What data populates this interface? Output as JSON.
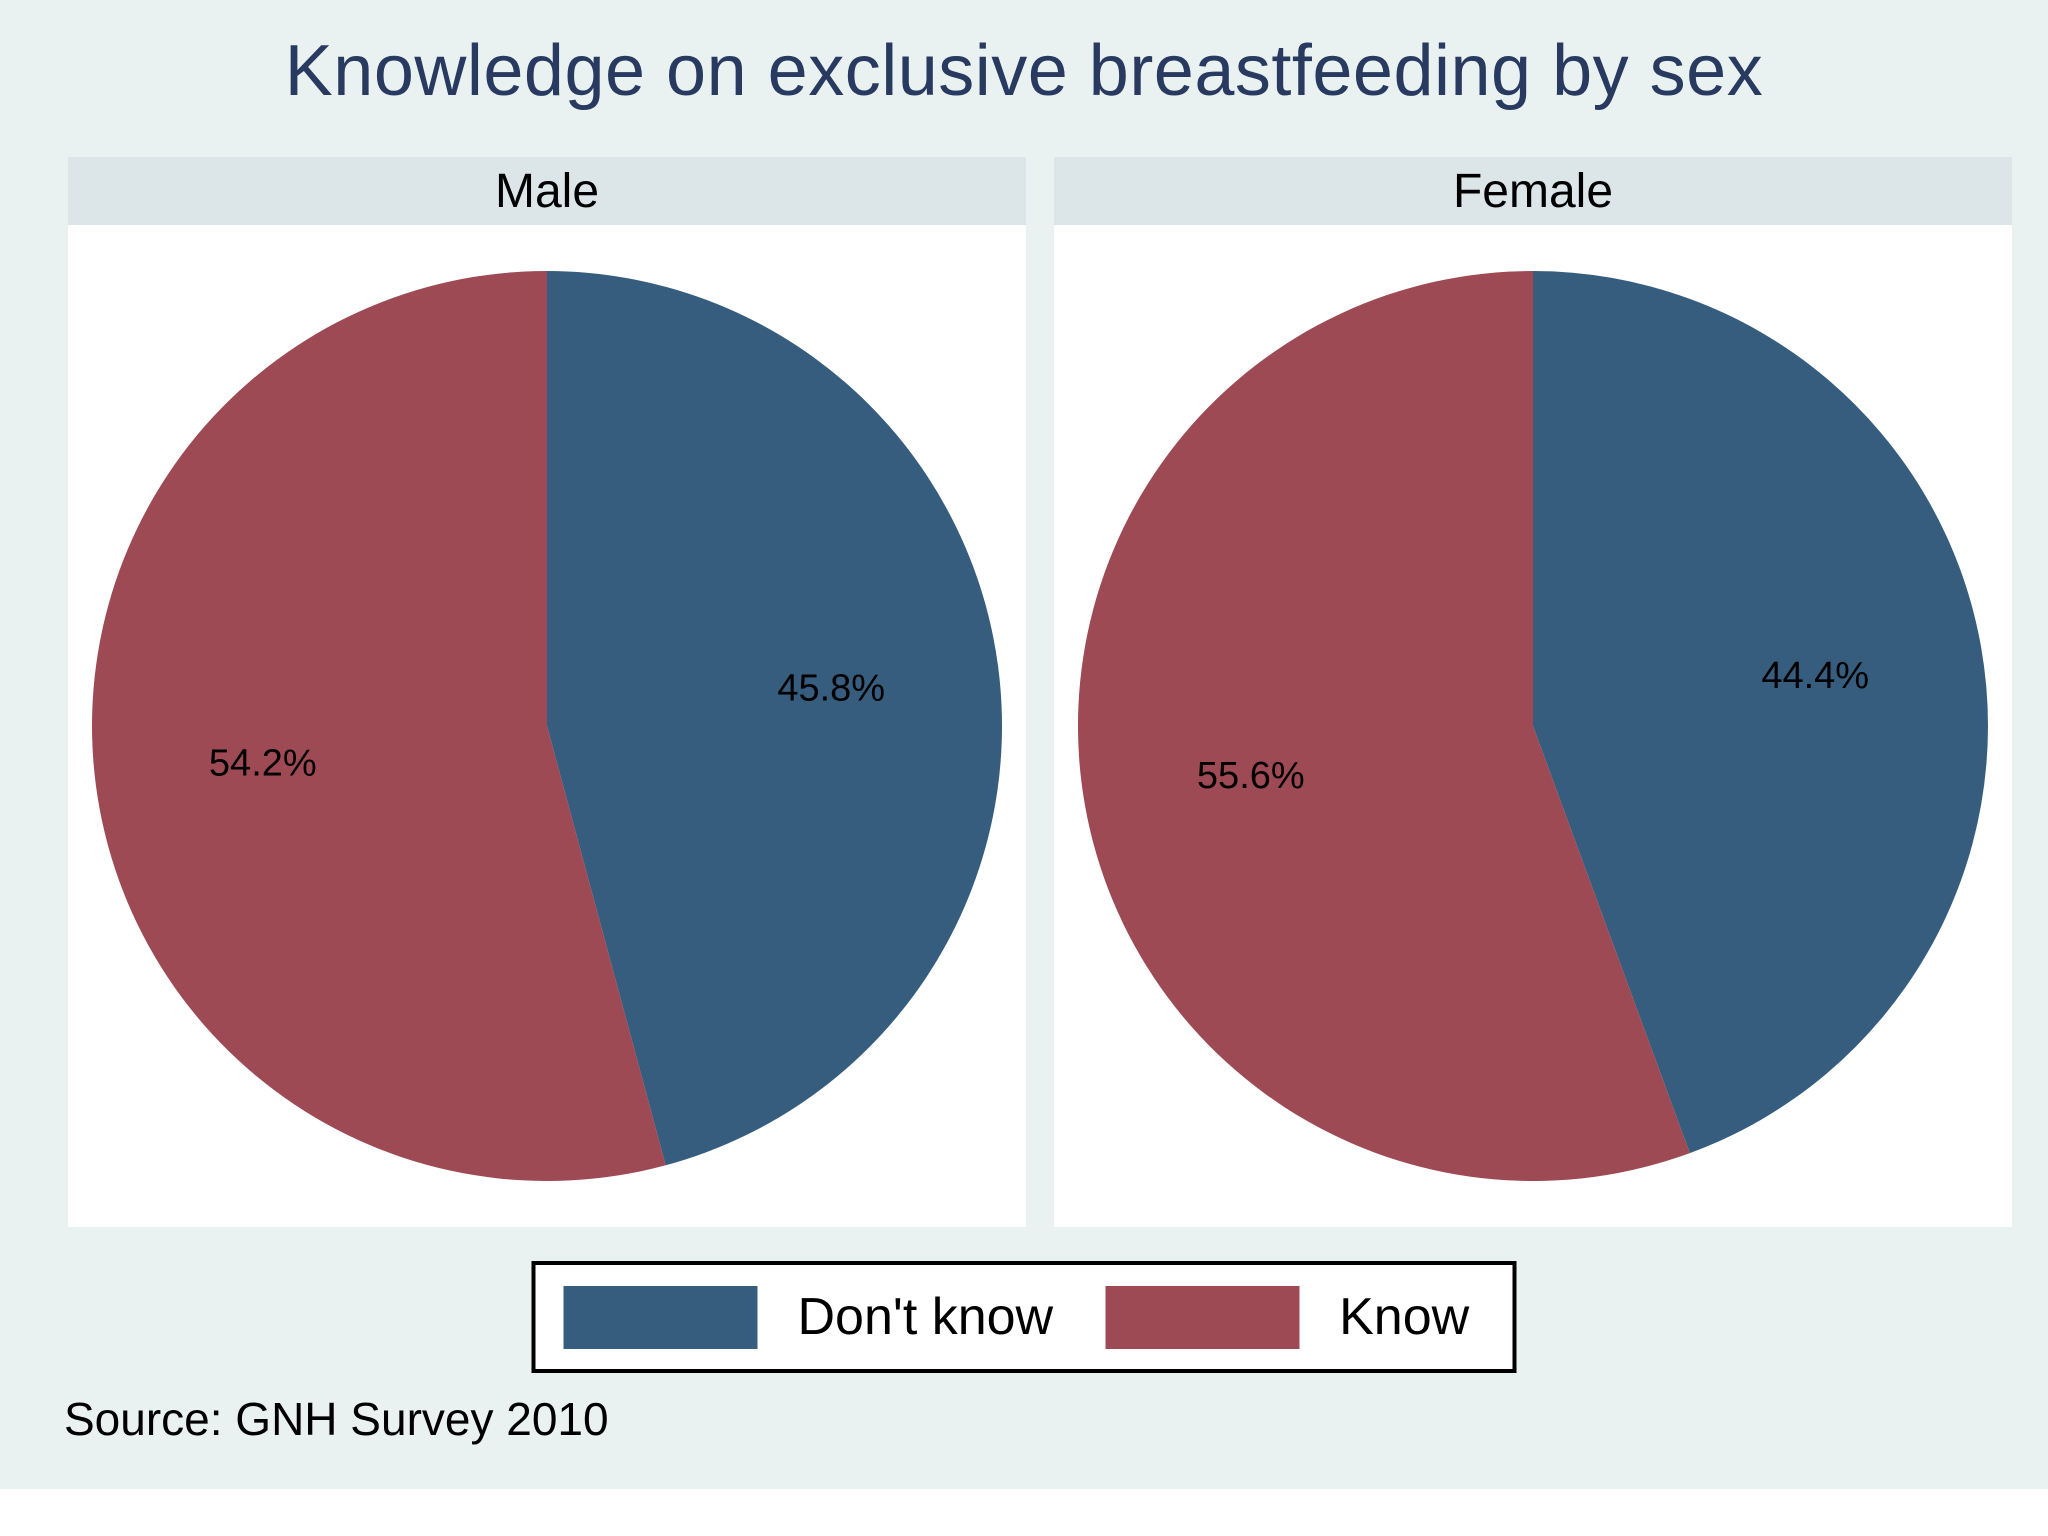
{
  "title": "Knowledge on exclusive breastfeeding by sex",
  "source": "Source: GNH Survey 2010",
  "colors": {
    "background": "#E9F2F1",
    "panel_header_bg": "#DCE5E8",
    "plot_bg": "#FFFFFF",
    "title_color": "#283A60",
    "label_color": "#000000",
    "dont_know": "#365C7E",
    "know": "#9E4A54"
  },
  "legend": {
    "items": [
      {
        "label": "Don't know",
        "color": "#365C7E"
      },
      {
        "label": "Know",
        "color": "#9E4A54"
      }
    ]
  },
  "chart_data": [
    {
      "type": "pie",
      "title": "Male",
      "labels": [
        "Don't know",
        "Know"
      ],
      "values": [
        45.8,
        54.2
      ],
      "value_labels": [
        "45.8%",
        "54.2%"
      ],
      "colors": [
        "#365C7E",
        "#9E4A54"
      ],
      "start_angle_deg": 0,
      "direction": "clockwise",
      "label_radius_fraction": 0.63
    },
    {
      "type": "pie",
      "title": "Female",
      "labels": [
        "Don't know",
        "Know"
      ],
      "values": [
        44.4,
        55.6
      ],
      "value_labels": [
        "44.4%",
        "55.6%"
      ],
      "colors": [
        "#365C7E",
        "#9E4A54"
      ],
      "start_angle_deg": 0,
      "direction": "clockwise",
      "label_radius_fraction": 0.63
    }
  ]
}
